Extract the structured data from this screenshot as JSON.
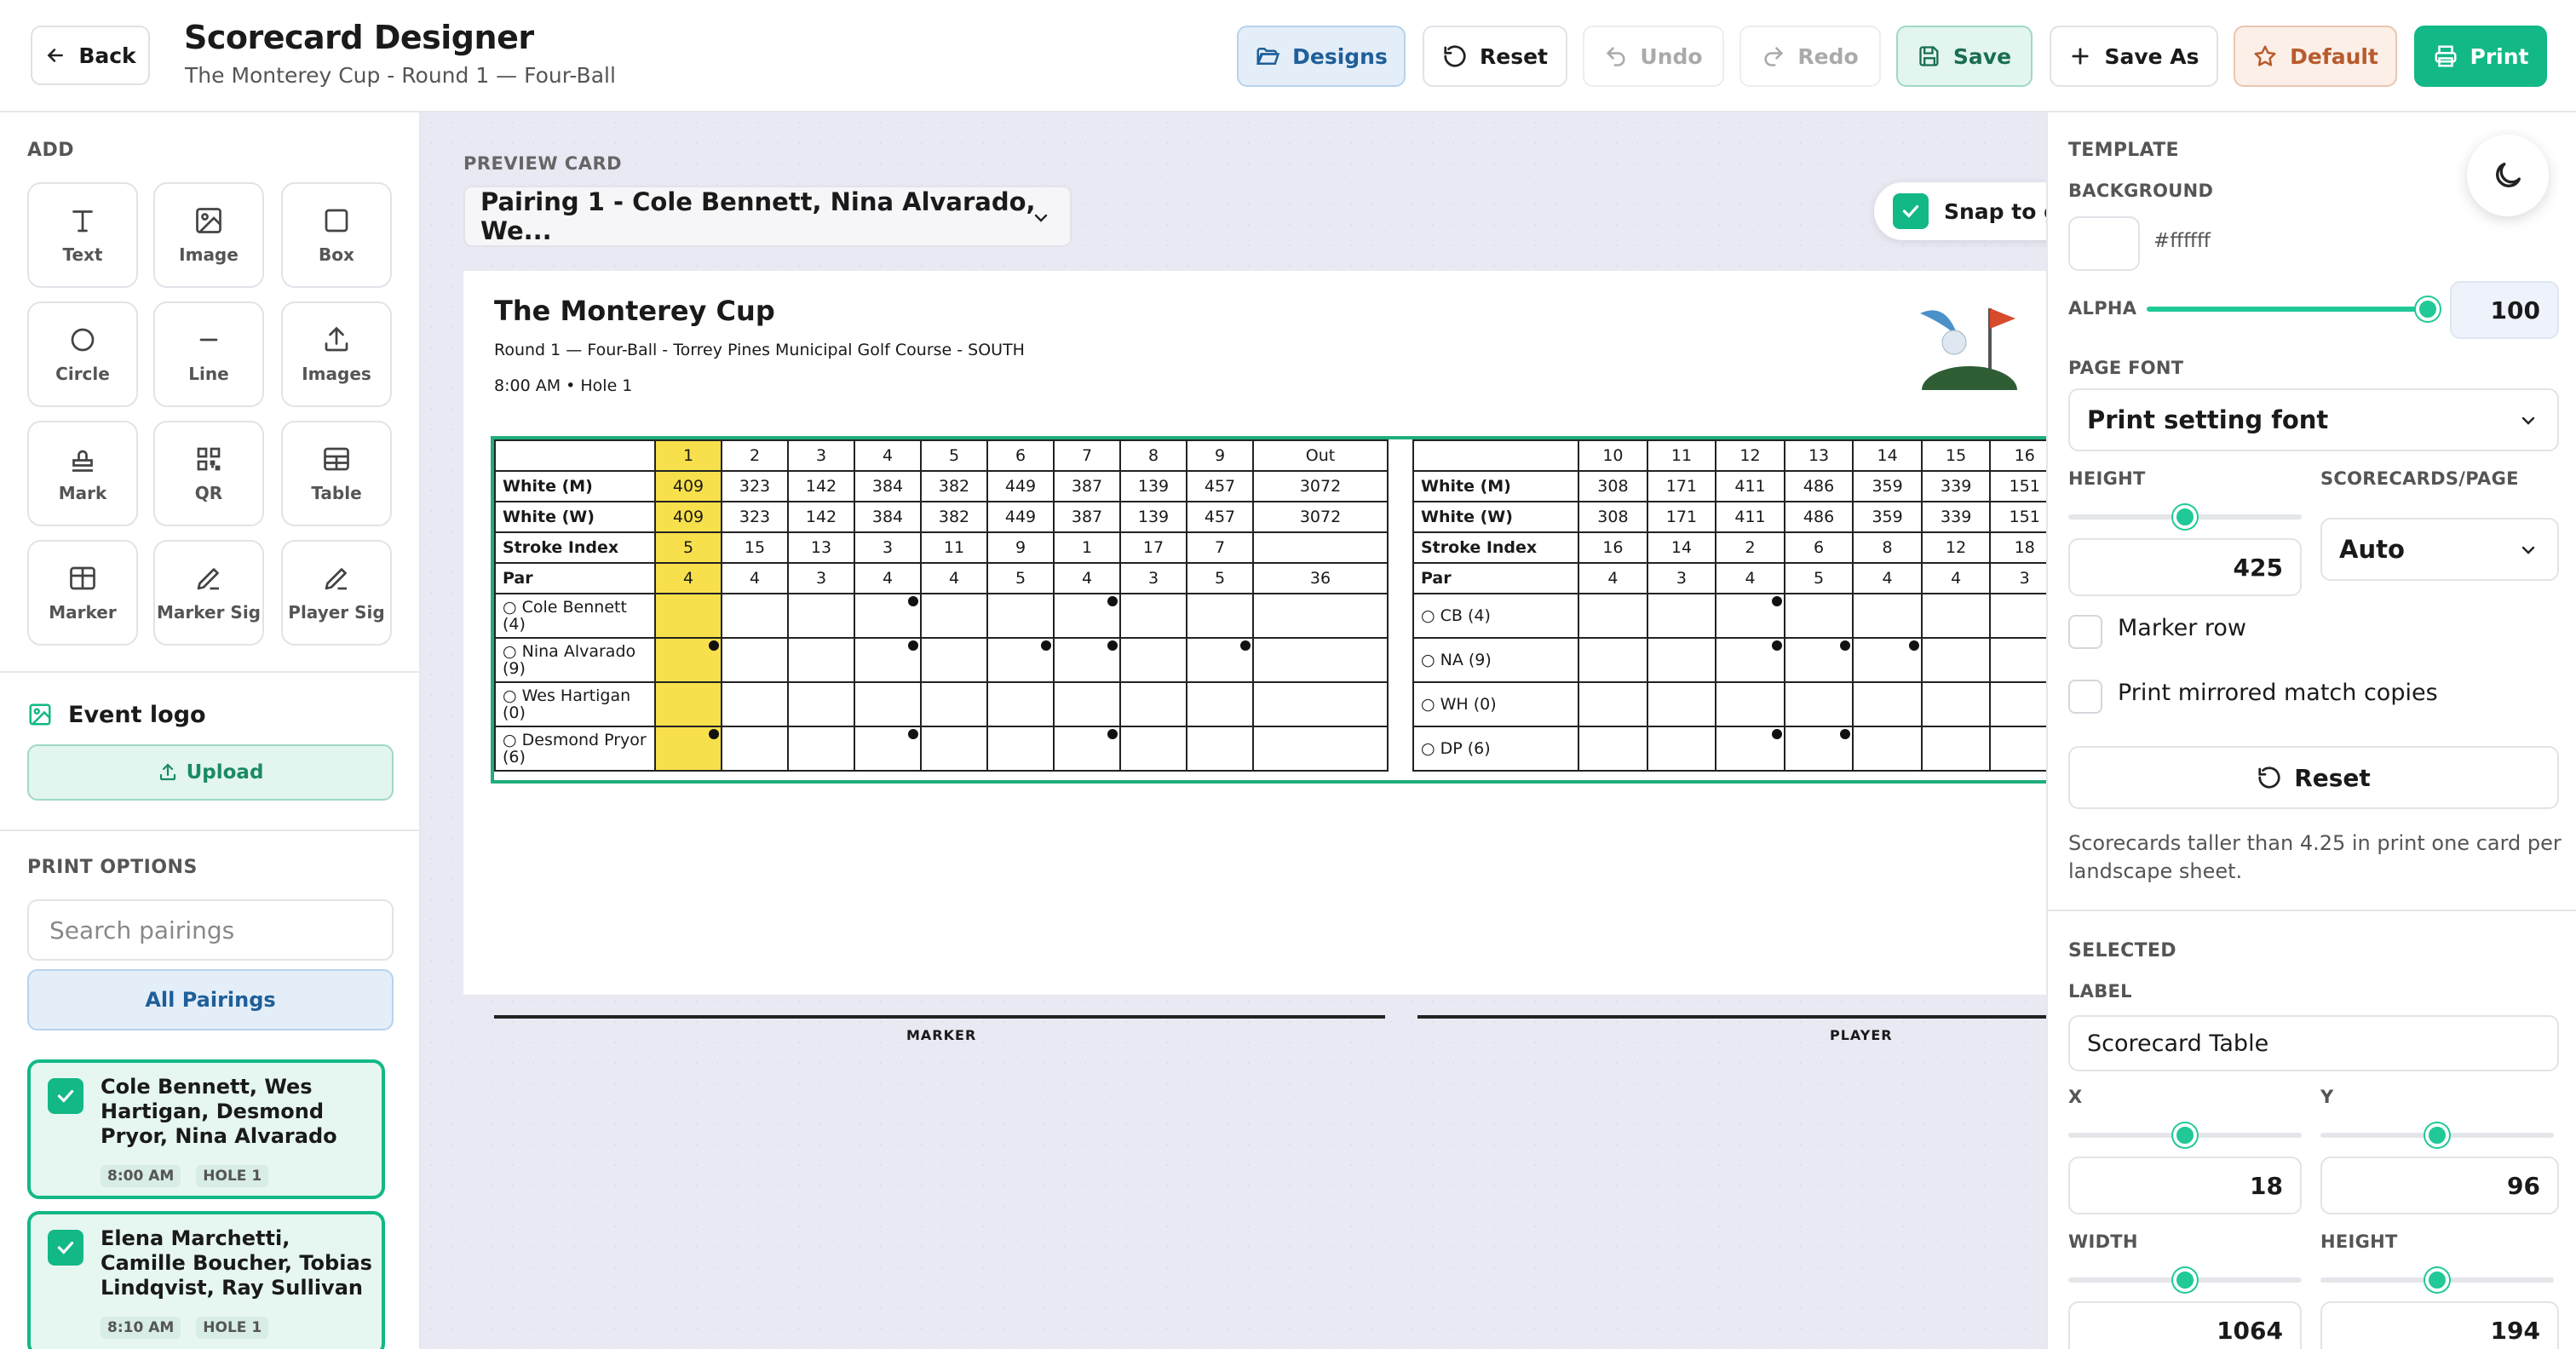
{
  "header": {
    "back_label": "Back",
    "title": "Scorecard Designer",
    "subtitle": "The Monterey Cup - Round 1 — Four-Ball",
    "designs_label": "Designs",
    "reset_label": "Reset",
    "undo_label": "Undo",
    "redo_label": "Redo",
    "save_label": "Save",
    "save_as_label": "Save As",
    "default_label": "Default",
    "print_label": "Print"
  },
  "sidebar": {
    "add_label": "ADD",
    "tools": [
      "Text",
      "Image",
      "Box",
      "Circle",
      "Line",
      "Images",
      "Mark",
      "QR",
      "Table",
      "Marker",
      "Marker Sig",
      "Player Sig"
    ],
    "event_logo_label": "Event logo",
    "upload_label": "Upload",
    "print_options_label": "PRINT OPTIONS",
    "search_placeholder": "Search pairings",
    "all_pairings_label": "All Pairings",
    "pairings": [
      {
        "names": "Cole Bennett, Wes Hartigan, Desmond Pryor, Nina Alvarado",
        "time": "8:00 AM",
        "hole": "HOLE 1",
        "checked": true
      },
      {
        "names": "Elena Marchetti, Camille Boucher, Tobias Lindqvist, Ray Sullivan",
        "time": "8:10 AM",
        "hole": "HOLE 1",
        "checked": true
      }
    ]
  },
  "preview": {
    "label": "PREVIEW CARD",
    "selected": "Pairing 1 - Cole Bennett, Nina Alvarado, We...",
    "snap_label": "Snap to grid",
    "card": {
      "title": "The Monterey Cup",
      "round": "Round 1 — Four-Ball - Torrey Pines Municipal Golf Course - SOUTH",
      "time": "8:00 AM • Hole 1",
      "front": {
        "holes": [
          "1",
          "2",
          "3",
          "4",
          "5",
          "6",
          "7",
          "8",
          "9",
          "Out"
        ],
        "rows": [
          {
            "label": "White (M)",
            "cells": [
              "409",
              "323",
              "142",
              "384",
              "382",
              "449",
              "387",
              "139",
              "457",
              "3072"
            ]
          },
          {
            "label": "White (W)",
            "cells": [
              "409",
              "323",
              "142",
              "384",
              "382",
              "449",
              "387",
              "139",
              "457",
              "3072"
            ]
          },
          {
            "label": "Stroke Index",
            "cells": [
              "5",
              "15",
              "13",
              "3",
              "11",
              "9",
              "1",
              "17",
              "7",
              ""
            ]
          },
          {
            "label": "Par",
            "cells": [
              "4",
              "4",
              "3",
              "4",
              "4",
              "5",
              "4",
              "3",
              "5",
              "36"
            ]
          }
        ],
        "players": [
          {
            "label": "○ Cole Bennett (4)",
            "dots": [
              4,
              7
            ]
          },
          {
            "label": "○ Nina Alvarado (9)",
            "dots": [
              1,
              4,
              6,
              7,
              9
            ]
          },
          {
            "label": "○ Wes Hartigan (0)",
            "dots": []
          },
          {
            "label": "○ Desmond Pryor (6)",
            "dots": [
              1,
              4,
              7
            ]
          }
        ]
      },
      "back": {
        "holes": [
          "10",
          "11",
          "12",
          "13",
          "14",
          "15",
          "16"
        ],
        "rows": [
          {
            "label": "White (M)",
            "cells": [
              "308",
              "171",
              "411",
              "486",
              "359",
              "339",
              "151"
            ]
          },
          {
            "label": "White (W)",
            "cells": [
              "308",
              "171",
              "411",
              "486",
              "359",
              "339",
              "151"
            ]
          },
          {
            "label": "Stroke Index",
            "cells": [
              "16",
              "14",
              "2",
              "6",
              "8",
              "12",
              "18"
            ]
          },
          {
            "label": "Par",
            "cells": [
              "4",
              "3",
              "4",
              "5",
              "4",
              "4",
              "3"
            ]
          }
        ],
        "players": [
          {
            "label": "○ CB (4)",
            "dots": [
              12
            ]
          },
          {
            "label": "○ NA (9)",
            "dots": [
              12,
              13,
              14
            ]
          },
          {
            "label": "○ WH (0)",
            "dots": []
          },
          {
            "label": "○ DP (6)",
            "dots": [
              12,
              13
            ]
          }
        ]
      },
      "marker_label": "MARKER",
      "player_label": "PLAYER"
    }
  },
  "template": {
    "section_label": "TEMPLATE",
    "background_label": "BACKGROUND",
    "background_value": "#ffffff",
    "alpha_label": "ALPHA",
    "alpha_value": "100",
    "page_font_label": "PAGE FONT",
    "page_font_value": "Print setting font",
    "height_label": "HEIGHT",
    "height_value": "425",
    "height_slider": 0.5,
    "per_page_label": "SCORECARDS/PAGE",
    "per_page_value": "Auto",
    "marker_row_label": "Marker row",
    "mirrored_label": "Print mirrored match copies",
    "reset_label": "Reset",
    "note": "Scorecards taller than 4.25 in print one card per landscape sheet."
  },
  "selected": {
    "section_label": "SELECTED",
    "label_label": "LABEL",
    "label_value": "Scorecard Table",
    "x_label": "X",
    "x_value": "18",
    "y_label": "Y",
    "y_value": "96",
    "width_label": "WIDTH",
    "width_value": "1064",
    "height_label": "HEIGHT",
    "height_value": "194"
  },
  "colors": {
    "accent": "#12b886",
    "highlight": "#f7e04b",
    "designs": "#1f5f99",
    "default": "#b85b2d"
  }
}
